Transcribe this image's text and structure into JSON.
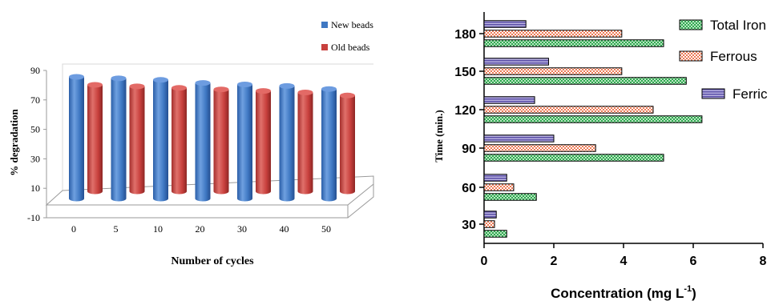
{
  "chart_data": [
    {
      "type": "bar",
      "style": "3d-cylinder",
      "title": "",
      "xlabel": "Number of cycles",
      "ylabel": "% degradation",
      "categories": [
        "0",
        "5",
        "10",
        "20",
        "30",
        "40",
        "50"
      ],
      "y_ticks": [
        "-10",
        "10",
        "30",
        "50",
        "70",
        "90"
      ],
      "ylim": [
        -10,
        90
      ],
      "legend_position": "top-right",
      "series": [
        {
          "name": "New beads",
          "color": "#3f78c3",
          "values": [
            80,
            79,
            78,
            76,
            75,
            74,
            72
          ]
        },
        {
          "name": "Old beads",
          "color": "#c8403d",
          "values": [
            70,
            69,
            68,
            67,
            66,
            65,
            63
          ]
        }
      ]
    },
    {
      "type": "bar",
      "orientation": "horizontal",
      "title": "",
      "xlabel": "Concentration (mg L",
      "xlabel_superscript": "-1",
      "xlabel_suffix": ")",
      "ylabel": "Time (min.)",
      "categories": [
        "30",
        "60",
        "90",
        "120",
        "150",
        "180"
      ],
      "x_ticks": [
        "0",
        "2",
        "4",
        "6",
        "8"
      ],
      "xlim": [
        0,
        8
      ],
      "legend_position": "right",
      "series": [
        {
          "name": "Total Iron",
          "color": "#2fa84f",
          "pattern": "checker",
          "values": [
            0.65,
            1.5,
            5.15,
            6.25,
            5.8,
            5.15
          ]
        },
        {
          "name": "Ferrous",
          "color": "#ee7a55",
          "pattern": "checker",
          "values": [
            0.3,
            0.85,
            3.2,
            4.85,
            3.95,
            3.95
          ]
        },
        {
          "name": "Ferric",
          "color": "#5b4fa8",
          "pattern": "stripes",
          "values": [
            0.35,
            0.65,
            2.0,
            1.45,
            1.85,
            1.2
          ]
        }
      ]
    }
  ]
}
